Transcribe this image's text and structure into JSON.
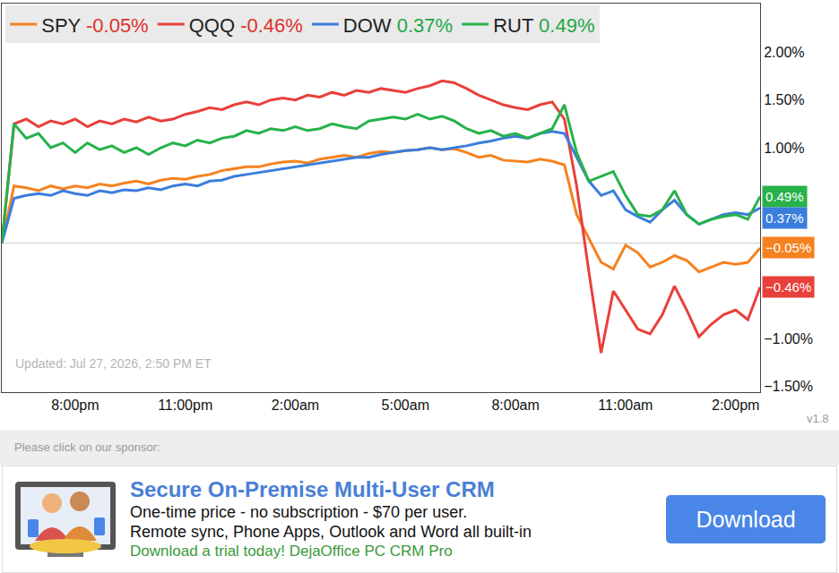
{
  "chart_data": {
    "type": "line",
    "categories": [
      null,
      null,
      null,
      null,
      null,
      null,
      "8:00pm",
      null,
      null,
      null,
      null,
      null,
      null,
      null,
      null,
      "11:00pm",
      null,
      null,
      null,
      null,
      null,
      null,
      null,
      null,
      "2:00am",
      null,
      null,
      null,
      null,
      null,
      null,
      null,
      null,
      "5:00am",
      null,
      null,
      null,
      null,
      null,
      null,
      null,
      null,
      "8:00am",
      null,
      null,
      null,
      null,
      null,
      null,
      null,
      null,
      "11:00am",
      null,
      null,
      null,
      null,
      null,
      null,
      null,
      null,
      "2:00pm",
      null,
      null
    ],
    "series": [
      {
        "name": "SPY",
        "color": "#f5821f",
        "change": -0.05,
        "change_label": "-0.05%",
        "end_label": "−0.05%",
        "values": [
          0,
          0.6,
          0.58,
          0.55,
          0.6,
          0.57,
          0.6,
          0.58,
          0.62,
          0.6,
          0.63,
          0.65,
          0.62,
          0.66,
          0.68,
          0.67,
          0.7,
          0.72,
          0.76,
          0.78,
          0.8,
          0.8,
          0.83,
          0.85,
          0.86,
          0.84,
          0.88,
          0.9,
          0.92,
          0.9,
          0.94,
          0.96,
          0.95,
          0.97,
          0.98,
          1.0,
          0.98,
          0.99,
          0.95,
          0.9,
          0.92,
          0.87,
          0.86,
          0.85,
          0.88,
          0.86,
          0.82,
          0.3,
          0.05,
          -0.2,
          -0.27,
          -0.02,
          -0.1,
          -0.25,
          -0.2,
          -0.13,
          -0.18,
          -0.3,
          -0.25,
          -0.2,
          -0.22,
          -0.2,
          -0.05
        ]
      },
      {
        "name": "QQQ",
        "color": "#e8403a",
        "change": -0.46,
        "change_label": "-0.46%",
        "end_label": "−0.46%",
        "values": [
          0,
          1.25,
          1.3,
          1.22,
          1.28,
          1.25,
          1.3,
          1.22,
          1.28,
          1.25,
          1.3,
          1.27,
          1.32,
          1.28,
          1.3,
          1.35,
          1.38,
          1.42,
          1.4,
          1.45,
          1.48,
          1.45,
          1.5,
          1.52,
          1.5,
          1.55,
          1.53,
          1.58,
          1.55,
          1.6,
          1.58,
          1.62,
          1.6,
          1.58,
          1.62,
          1.65,
          1.7,
          1.68,
          1.62,
          1.55,
          1.5,
          1.45,
          1.42,
          1.4,
          1.45,
          1.48,
          1.3,
          0.6,
          -0.3,
          -1.15,
          -0.5,
          -0.7,
          -0.9,
          -0.95,
          -0.75,
          -0.45,
          -0.7,
          -0.98,
          -0.85,
          -0.75,
          -0.7,
          -0.8,
          -0.46
        ]
      },
      {
        "name": "DOW",
        "color": "#3b7ddd",
        "change": 0.37,
        "change_label": "0.37%",
        "end_label": "0.37%",
        "values": [
          0,
          0.47,
          0.5,
          0.52,
          0.5,
          0.55,
          0.52,
          0.5,
          0.55,
          0.53,
          0.56,
          0.55,
          0.58,
          0.56,
          0.6,
          0.62,
          0.6,
          0.65,
          0.66,
          0.7,
          0.72,
          0.74,
          0.76,
          0.78,
          0.8,
          0.82,
          0.84,
          0.86,
          0.88,
          0.9,
          0.9,
          0.93,
          0.95,
          0.97,
          0.98,
          1.0,
          0.98,
          1.0,
          1.02,
          1.05,
          1.07,
          1.1,
          1.12,
          1.1,
          1.15,
          1.17,
          1.15,
          0.9,
          0.65,
          0.5,
          0.55,
          0.35,
          0.28,
          0.22,
          0.35,
          0.45,
          0.3,
          0.2,
          0.25,
          0.3,
          0.32,
          0.3,
          0.37
        ]
      },
      {
        "name": "RUT",
        "color": "#27b24a",
        "change": 0.49,
        "change_label": "0.49%",
        "end_label": "0.49%",
        "values": [
          0,
          1.25,
          1.1,
          1.15,
          1.0,
          1.05,
          0.95,
          1.05,
          0.98,
          1.02,
          0.95,
          1.0,
          0.93,
          1.0,
          1.05,
          1.02,
          1.08,
          1.05,
          1.1,
          1.12,
          1.18,
          1.15,
          1.2,
          1.18,
          1.22,
          1.18,
          1.2,
          1.25,
          1.22,
          1.2,
          1.28,
          1.3,
          1.32,
          1.3,
          1.35,
          1.3,
          1.33,
          1.28,
          1.2,
          1.15,
          1.18,
          1.12,
          1.15,
          1.1,
          1.15,
          1.2,
          1.45,
          0.95,
          0.65,
          0.7,
          0.75,
          0.5,
          0.3,
          0.28,
          0.35,
          0.55,
          0.3,
          0.2,
          0.25,
          0.28,
          0.3,
          0.25,
          0.49
        ]
      }
    ],
    "ylim": [
      -1.56,
      2.51
    ],
    "yticks": [
      {
        "value": -1.5,
        "label": "−1.50%"
      },
      {
        "value": -1,
        "label": "−1.00%"
      },
      {
        "value": 1,
        "label": "1.00%"
      },
      {
        "value": 1.5,
        "label": "1.50%"
      },
      {
        "value": 2,
        "label": "2.00%"
      }
    ],
    "grid": false,
    "legend": "top-left",
    "updated": "Updated: Jul 27, 2026, 2:50 PM ET",
    "version": "v1.8"
  },
  "sponsor": {
    "prompt": "Please click on our sponsor:",
    "title": "Secure On-Premise Multi-User CRM",
    "lines": [
      "One-time price - no subscription - $70 per user.",
      "Remote sync, Phone Apps, Outlook and Word all built-in"
    ],
    "call_to_action": "Download a trial today! DejaOffice PC CRM Pro",
    "button": "Download"
  }
}
